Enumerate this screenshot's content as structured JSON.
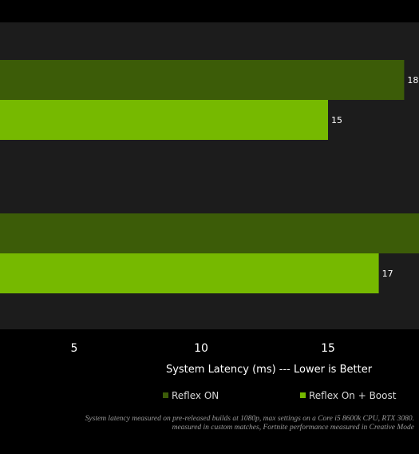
{
  "colors": {
    "background": "#000000",
    "plot_background": "#1c1c1c",
    "reflex_on": "#3c5c08",
    "reflex_on_boost": "#76b900",
    "text": "#ffffff"
  },
  "chart_data": {
    "type": "bar",
    "orientation": "horizontal",
    "categories": [
      "",
      ""
    ],
    "series": [
      {
        "name": "Reflex ON",
        "values": [
          18,
          19
        ]
      },
      {
        "name": "Reflex On + Boost",
        "values": [
          15,
          17
        ]
      }
    ],
    "data_labels": [
      [
        "18",
        ""
      ],
      [
        "15",
        "17"
      ]
    ],
    "xlabel": "System Latency (ms) --- Lower is Better",
    "x_ticks": [
      5,
      10,
      15
    ],
    "legend_position": "bottom",
    "grid": false
  },
  "footnote": {
    "line1": "System latency measured on pre-released builds at 1080p, max settings on a Core i5 8600k CPU, RTX 3080.",
    "line2": "measured in custom matches, Fortnite performance measured in Creative Mode"
  }
}
